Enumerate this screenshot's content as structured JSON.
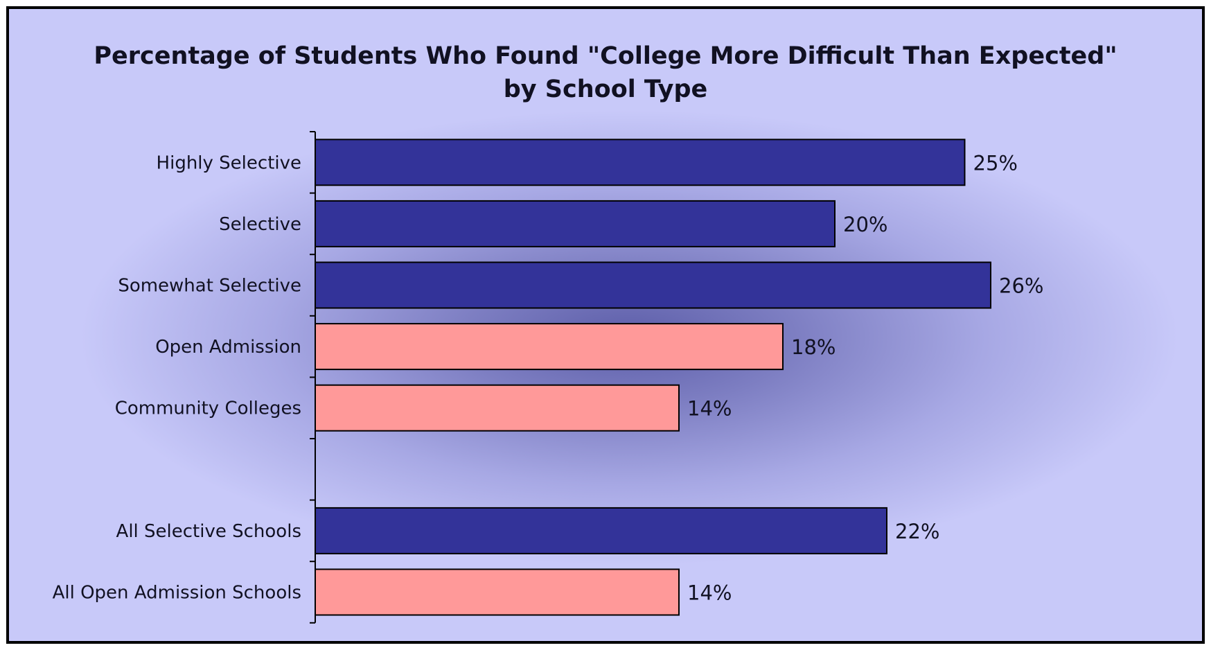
{
  "chart_data": {
    "type": "bar",
    "orientation": "horizontal",
    "title": "Percentage of Students Who Found \"College More Difficult Than Expected\"",
    "subtitle": "by School Type",
    "categories": [
      "Highly Selective",
      "Selective",
      "Somewhat Selective",
      "Open Admission",
      "Community Colleges",
      "",
      "All Selective Schools",
      "All Open Admission Schools"
    ],
    "values": [
      25,
      20,
      26,
      18,
      14,
      null,
      22,
      14
    ],
    "value_labels": [
      "25%",
      "20%",
      "26%",
      "18%",
      "14%",
      "",
      "22%",
      "14%"
    ],
    "bar_colors": [
      "#333399",
      "#333399",
      "#333399",
      "#ff9999",
      "#ff9999",
      "",
      "#333399",
      "#ff9999"
    ],
    "xlim": [
      0,
      28
    ],
    "xlabel": "",
    "ylabel": "",
    "grid": false,
    "legend": "none"
  }
}
